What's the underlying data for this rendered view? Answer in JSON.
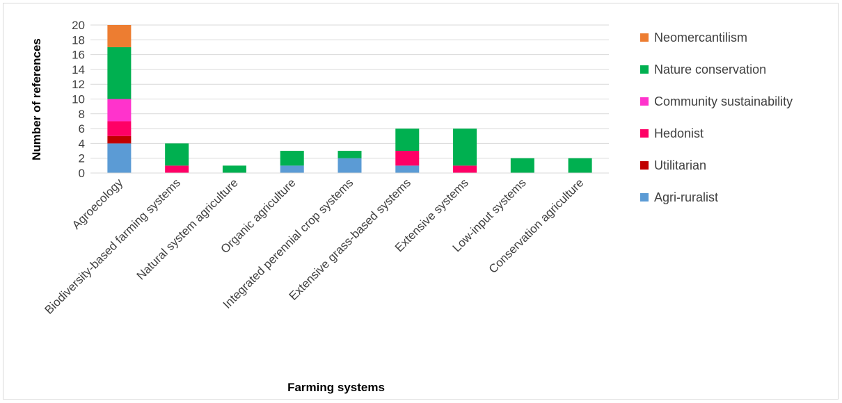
{
  "chart_data": {
    "type": "bar",
    "stacked": true,
    "title": "",
    "xlabel": "Farming systems",
    "ylabel": "Number of references",
    "ylim": [
      0,
      20
    ],
    "yticks": [
      "0",
      "2",
      "4",
      "6",
      "8",
      "10",
      "12",
      "14",
      "16",
      "18",
      "20"
    ],
    "grid": true,
    "legend_position": "right",
    "categories": [
      "Agroecology",
      "Biodiversity-based farming systems",
      "Natural system agriculture",
      "Organic agriculture",
      "Integrated perennial crop systems",
      "Extensive grass-based systems",
      "Extensive systems",
      "Low-input systems",
      "Conservation agriculture"
    ],
    "series": [
      {
        "name": "Agri-ruralist",
        "color": "#5b9bd5",
        "values": [
          4,
          0,
          0,
          1,
          2,
          1,
          0,
          0,
          0
        ]
      },
      {
        "name": "Utilitarian",
        "color": "#c00000",
        "values": [
          1,
          0,
          0,
          0,
          0,
          0,
          0,
          0,
          0
        ]
      },
      {
        "name": "Hedonist",
        "color": "#ff0066",
        "values": [
          2,
          1,
          0,
          0,
          0,
          2,
          1,
          0,
          0
        ]
      },
      {
        "name": "Community sustainability",
        "color": "#ff33cc",
        "values": [
          3,
          0,
          0,
          0,
          0,
          0,
          0,
          0,
          0
        ]
      },
      {
        "name": "Nature conservation",
        "color": "#00b050",
        "values": [
          7,
          3,
          1,
          2,
          1,
          3,
          5,
          2,
          2
        ]
      },
      {
        "name": "Neomercantilism",
        "color": "#ed7d31",
        "values": [
          3,
          0,
          0,
          0,
          0,
          0,
          0,
          0,
          0
        ]
      }
    ]
  }
}
